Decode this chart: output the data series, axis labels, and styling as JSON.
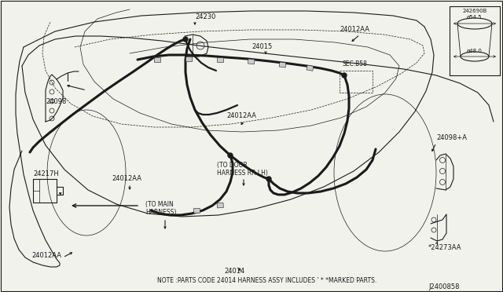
{
  "background_color": "#f5f5f0",
  "line_color": "#1a1a1a",
  "fig_width": 6.4,
  "fig_height": 3.72,
  "dpi": 100,
  "note_text": "NOTE :PARTS CODE 24014 HARNESS ASSY INCLUDES ' * *MARKED PARTS.",
  "diagram_code": "J2400858",
  "inset_label": "242690B",
  "inset_dim1": "ø54.5",
  "inset_dim2": "ø48.0",
  "lw_thin": 0.5,
  "lw_med": 0.8,
  "lw_thick": 1.6,
  "lw_harness": 2.2
}
